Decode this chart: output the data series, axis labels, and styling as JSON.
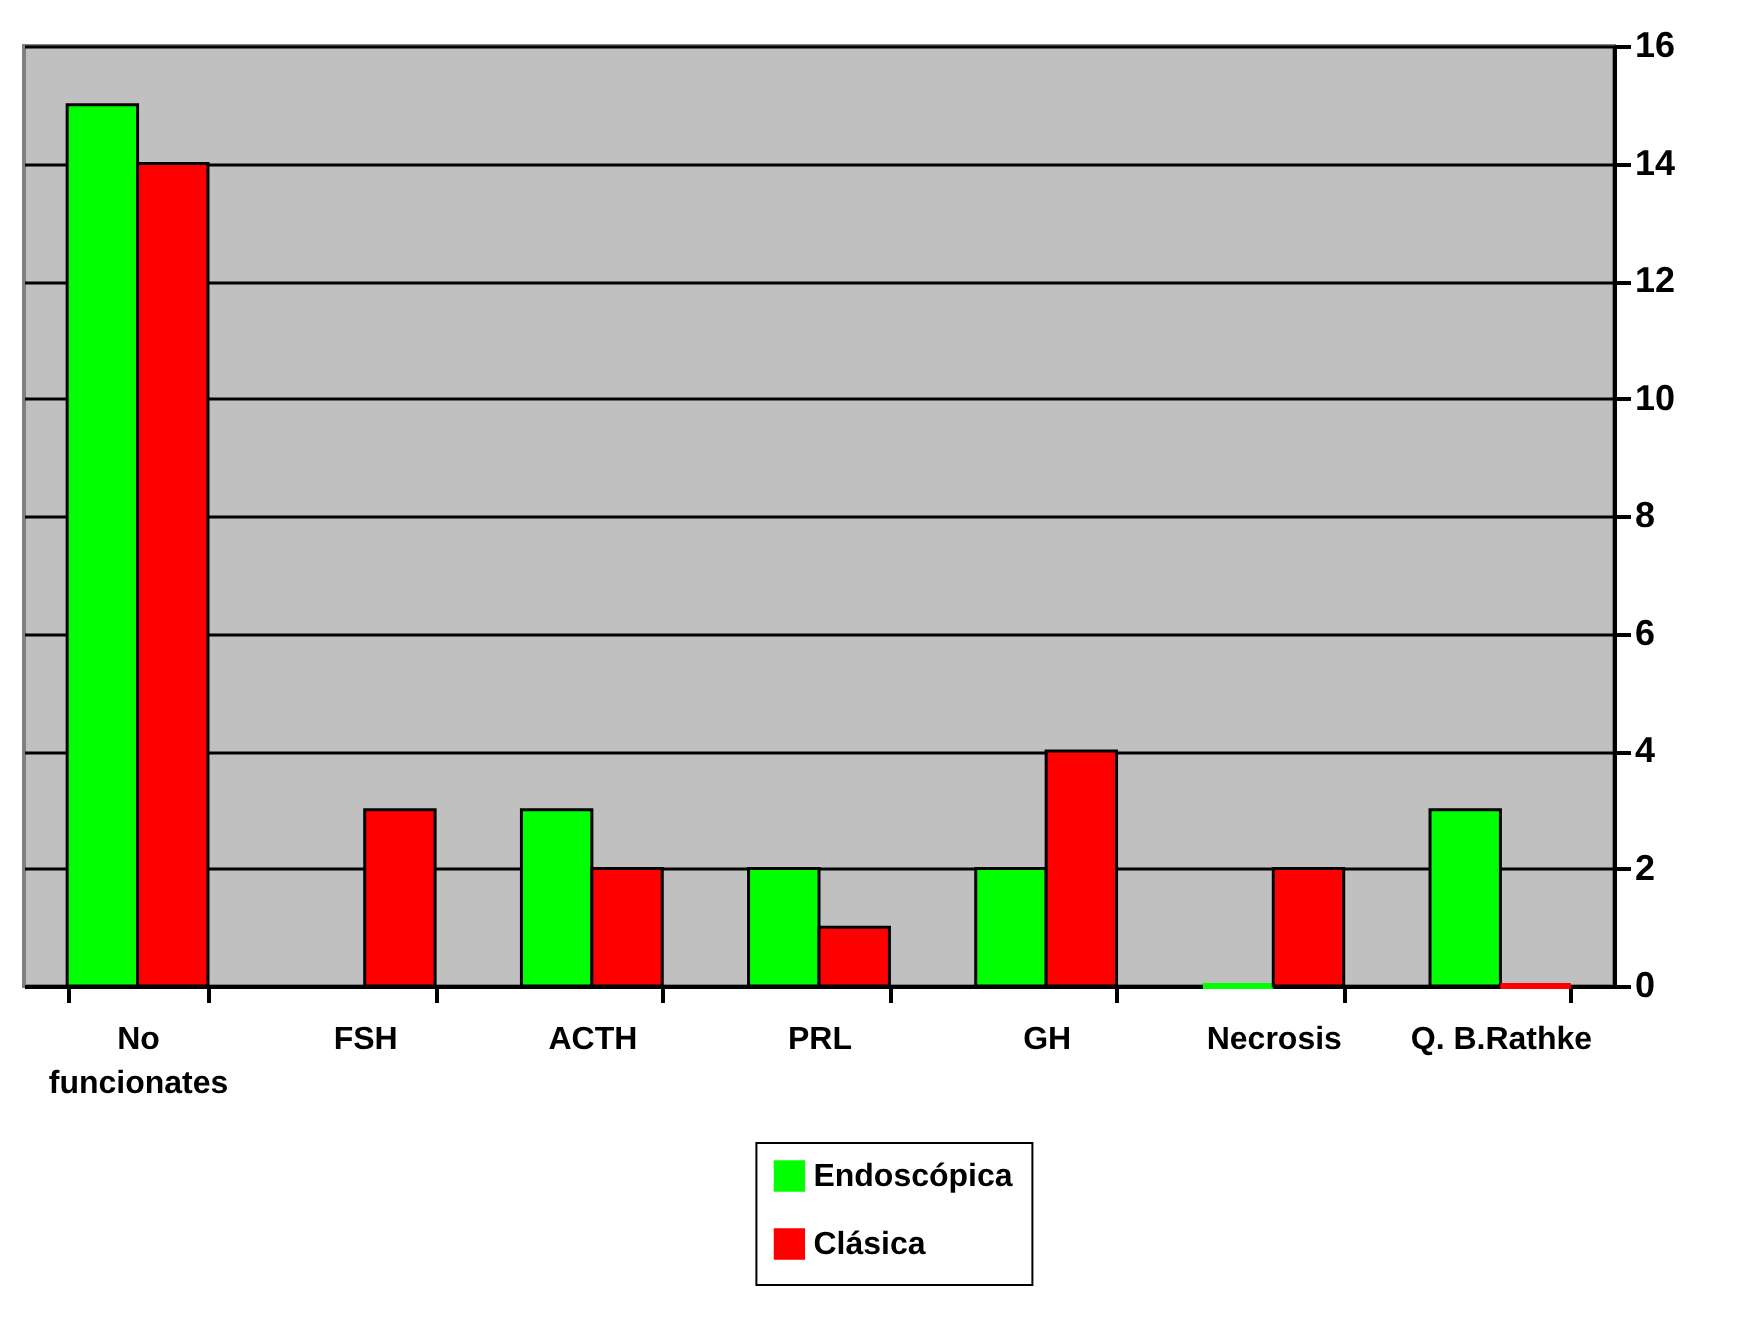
{
  "chart_data": {
    "type": "bar",
    "categories": [
      "No funcionates",
      "FSH",
      "ACTH",
      "PRL",
      "GH",
      "Necrosis",
      "Q. B.Rathke"
    ],
    "series": [
      {
        "name": "Endoscópica",
        "color": "#00ff00",
        "values": [
          15,
          null,
          3,
          2,
          2,
          0,
          3
        ]
      },
      {
        "name": "Clásica",
        "color": "#ff0000",
        "values": [
          14,
          3,
          2,
          1,
          4,
          2,
          0
        ]
      }
    ],
    "ylim": [
      0,
      16
    ],
    "yticks": [
      0,
      2,
      4,
      6,
      8,
      10,
      12,
      14,
      16
    ],
    "grid": "y",
    "legend": "bottom"
  }
}
